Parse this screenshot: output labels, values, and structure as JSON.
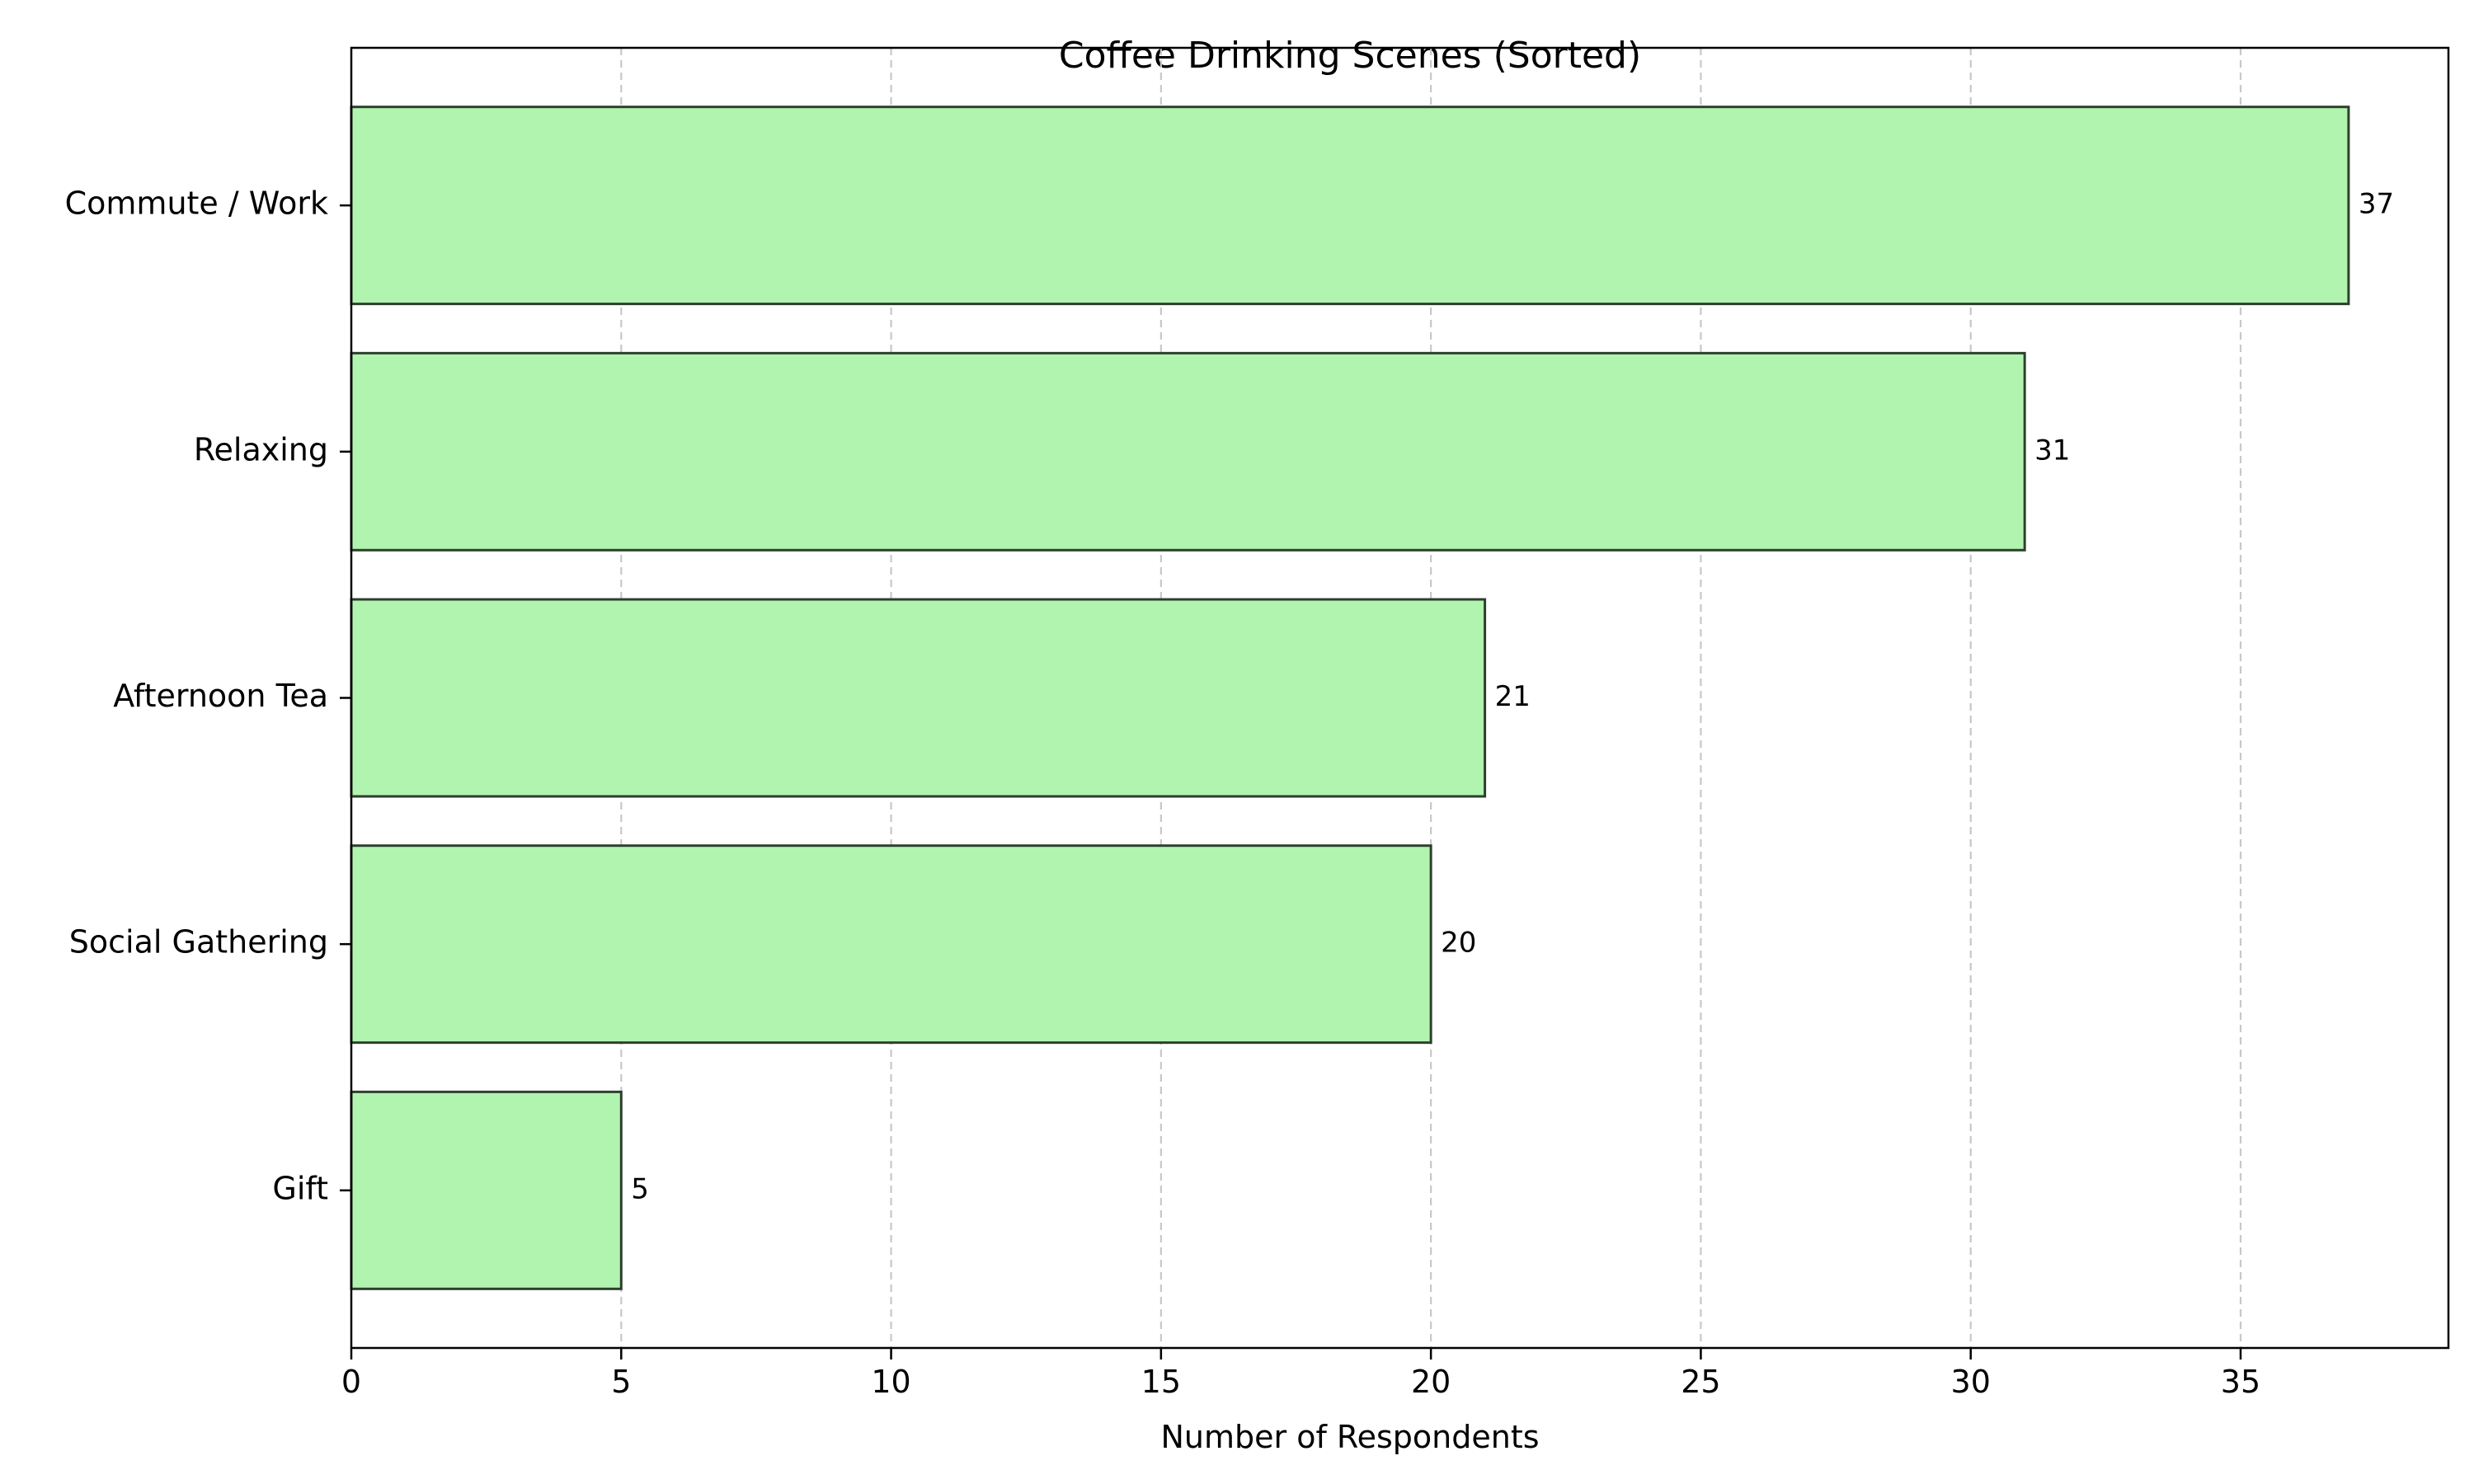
{
  "chart_data": {
    "type": "bar",
    "orientation": "horizontal",
    "title": "Coffee Drinking Scenes (Sorted)",
    "xlabel": "Number of Respondents",
    "ylabel": "",
    "categories": [
      "Commute / Work",
      "Relaxing",
      "Afternoon Tea",
      "Social Gathering",
      "Gift"
    ],
    "values": [
      37,
      31,
      21,
      20,
      5
    ],
    "data_labels": [
      "37",
      "31",
      "21",
      "20",
      "5"
    ],
    "xlim": [
      0,
      38.85
    ],
    "xticks": [
      0,
      5,
      10,
      15,
      20,
      25,
      30,
      35
    ],
    "xtick_labels": [
      "0",
      "5",
      "10",
      "15",
      "20",
      "25",
      "30",
      "35"
    ],
    "grid": "x-axis dashed",
    "legend": "none",
    "colors": {
      "bar_fill": "#b1f4b0",
      "bar_edge": "#2e3f2e",
      "grid": "#c8c8c8",
      "axis": "#000000"
    }
  }
}
